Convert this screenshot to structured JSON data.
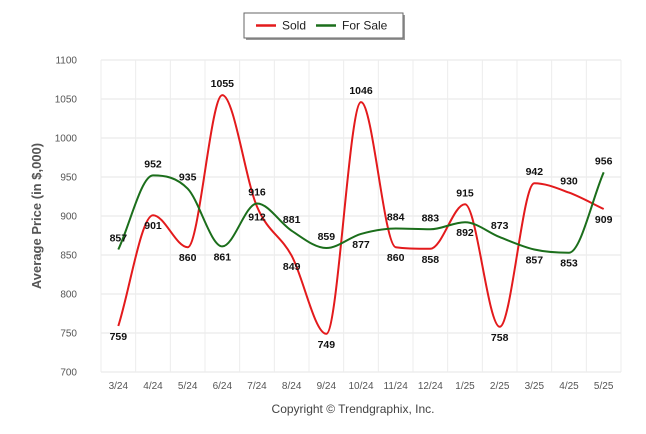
{
  "chart_data": {
    "type": "line",
    "ylabel": "Average Price (in $,000)",
    "ylim": [
      700,
      1100
    ],
    "yticks": [
      700,
      750,
      800,
      850,
      900,
      950,
      1000,
      1050,
      1100
    ],
    "grid": true,
    "legend_position": "top-center",
    "categories": [
      "3/24",
      "4/24",
      "5/24",
      "6/24",
      "7/24",
      "8/24",
      "9/24",
      "10/24",
      "11/24",
      "12/24",
      "1/25",
      "2/25",
      "3/25",
      "4/25",
      "5/25"
    ],
    "series": [
      {
        "name": "Sold",
        "color": "#e31a1c",
        "values": [
          759,
          901,
          860,
          1055,
          912,
          849,
          749,
          1046,
          860,
          858,
          915,
          758,
          942,
          930,
          909
        ]
      },
      {
        "name": "For Sale",
        "color": "#1b6e1b",
        "values": [
          857,
          952,
          935,
          861,
          916,
          881,
          859,
          877,
          884,
          883,
          892,
          873,
          857,
          853,
          956
        ]
      }
    ],
    "footer": "Copyright © Trendgraphix, Inc."
  }
}
